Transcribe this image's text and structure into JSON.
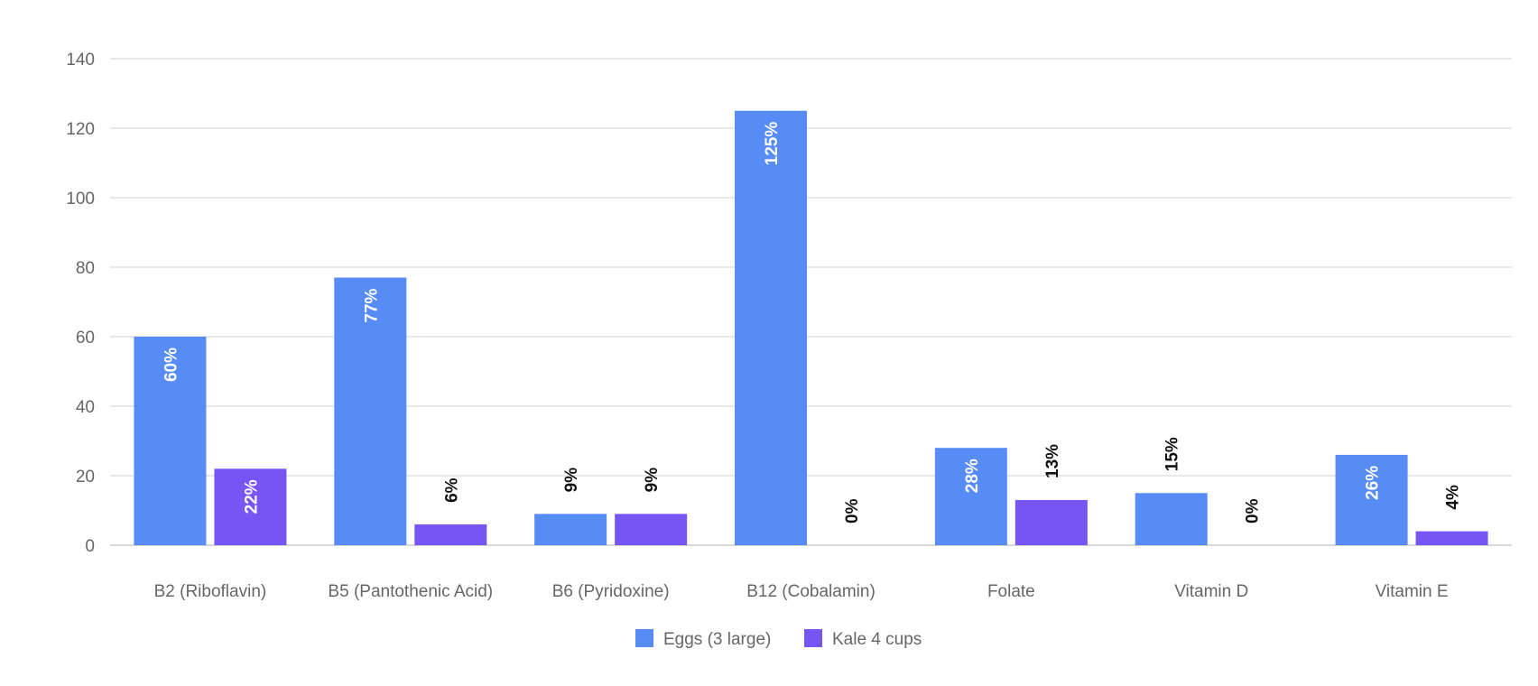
{
  "chart_data": {
    "type": "bar",
    "title": "",
    "xlabel": "",
    "ylabel": "",
    "ylim": [
      0,
      140
    ],
    "yticks": [
      0,
      20,
      40,
      60,
      80,
      100,
      120,
      140
    ],
    "grid": true,
    "legend_position": "bottom",
    "categories": [
      "B2 (Riboflavin)",
      "B5 (Pantothenic Acid)",
      "B6 (Pyridoxine)",
      "B12 (Cobalamin)",
      "Folate",
      "Vitamin D",
      "Vitamin E"
    ],
    "series": [
      {
        "name": "Eggs (3 large)",
        "color": "#578cf6",
        "values": [
          60,
          77,
          9,
          125,
          28,
          15,
          26
        ],
        "labels": [
          "60%",
          "77%",
          "9%",
          "125%",
          "28%",
          "15%",
          "26%"
        ]
      },
      {
        "name": "Kale 4 cups",
        "color": "#7755f5",
        "values": [
          22,
          6,
          9,
          0,
          13,
          0,
          4
        ],
        "labels": [
          "22%",
          "6%",
          "9%",
          "0%",
          "13%",
          "0%",
          "4%"
        ]
      }
    ]
  }
}
